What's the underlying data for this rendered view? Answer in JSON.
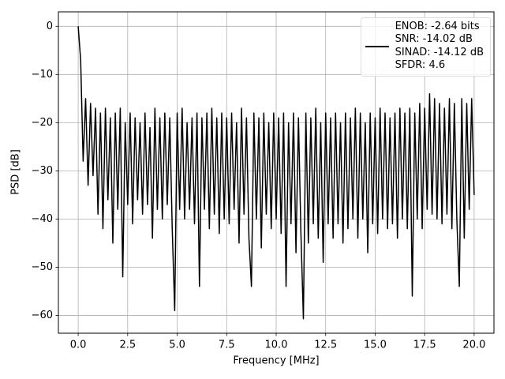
{
  "chart_data": {
    "type": "line",
    "xlabel": "Frequency [MHz]",
    "ylabel": "PSD [dB]",
    "x": [
      0,
      0.125,
      0.25,
      0.375,
      0.5,
      0.625,
      0.75,
      0.875,
      1,
      1.125,
      1.25,
      1.375,
      1.5,
      1.625,
      1.75,
      1.875,
      2,
      2.125,
      2.25,
      2.375,
      2.5,
      2.625,
      2.75,
      2.875,
      3,
      3.125,
      3.25,
      3.375,
      3.5,
      3.625,
      3.75,
      3.875,
      4,
      4.125,
      4.25,
      4.375,
      4.5,
      4.625,
      4.75,
      4.875,
      5,
      5.125,
      5.25,
      5.375,
      5.5,
      5.625,
      5.75,
      5.875,
      6,
      6.125,
      6.25,
      6.375,
      6.5,
      6.625,
      6.75,
      6.875,
      7,
      7.125,
      7.25,
      7.375,
      7.5,
      7.625,
      7.75,
      7.875,
      8,
      8.125,
      8.25,
      8.375,
      8.5,
      8.625,
      8.75,
      8.875,
      9,
      9.125,
      9.25,
      9.375,
      9.5,
      9.625,
      9.75,
      9.875,
      10,
      10.125,
      10.25,
      10.375,
      10.5,
      10.625,
      10.75,
      10.875,
      11,
      11.125,
      11.25,
      11.375,
      11.5,
      11.625,
      11.75,
      11.875,
      12,
      12.125,
      12.25,
      12.375,
      12.5,
      12.625,
      12.75,
      12.875,
      13,
      13.125,
      13.25,
      13.375,
      13.5,
      13.625,
      13.75,
      13.875,
      14,
      14.125,
      14.25,
      14.375,
      14.5,
      14.625,
      14.75,
      14.875,
      15,
      15.125,
      15.25,
      15.375,
      15.5,
      15.625,
      15.75,
      15.875,
      16,
      16.125,
      16.25,
      16.375,
      16.5,
      16.625,
      16.75,
      16.875,
      17,
      17.125,
      17.25,
      17.375,
      17.5,
      17.625,
      17.75,
      17.875,
      18,
      18.125,
      18.25,
      18.375,
      18.5,
      18.625,
      18.75,
      18.875,
      19,
      19.125,
      19.25,
      19.375,
      19.5,
      19.625,
      19.75,
      19.875,
      20
    ],
    "series": [
      {
        "name": "ENOB: -2.64 bits\nSNR: -14.02 dB\nSINAD: -14.12 dB\nSFDR: 4.6",
        "color": "#000000",
        "values": [
          0,
          -7,
          -28,
          -15,
          -33,
          -16,
          -31,
          -17,
          -39,
          -18,
          -42,
          -17,
          -36,
          -19,
          -45,
          -18,
          -38,
          -17,
          -52,
          -20,
          -37,
          -18,
          -41,
          -19,
          -36,
          -20,
          -39,
          -18,
          -37,
          -21,
          -44,
          -17,
          -38,
          -19,
          -40,
          -18,
          -37,
          -19,
          -42,
          -59,
          -18,
          -38,
          -17,
          -40,
          -20,
          -38,
          -19,
          -41,
          -18,
          -54,
          -19,
          -38,
          -18,
          -42,
          -17,
          -39,
          -19,
          -43,
          -18,
          -40,
          -19,
          -41,
          -18,
          -38,
          -20,
          -45,
          -17,
          -39,
          -19,
          -44,
          -54,
          -18,
          -40,
          -19,
          -46,
          -18,
          -39,
          -20,
          -42,
          -18,
          -40,
          -19,
          -43,
          -18,
          -54,
          -20,
          -41,
          -18,
          -47,
          -19,
          -43,
          -60.7,
          -18,
          -45,
          -19,
          -41,
          -17,
          -44,
          -20,
          -49,
          -18,
          -41,
          -19,
          -44,
          -18,
          -41,
          -20,
          -45,
          -18,
          -42,
          -19,
          -40,
          -17,
          -44,
          -18,
          -40,
          -20,
          -47,
          -18,
          -41,
          -19,
          -43,
          -17,
          -40,
          -18,
          -42,
          -19,
          -41,
          -18,
          -44,
          -17,
          -40,
          -18,
          -42,
          -17,
          -56,
          -18,
          -40,
          -16,
          -42,
          -17,
          -38,
          -14,
          -39,
          -15,
          -40,
          -16,
          -41,
          -17,
          -39,
          -15,
          -42,
          -16,
          -40,
          -54,
          -15,
          -44,
          -16,
          -38,
          -15,
          -35
        ]
      }
    ],
    "xlim": [
      -1,
      21
    ],
    "ylim": [
      -63.7,
      3.0
    ],
    "xticks": [
      {
        "value": 0,
        "label": "0.0"
      },
      2.5,
      {
        "value": 5,
        "label": "5.0"
      },
      7.5,
      {
        "value": 10,
        "label": "10.0"
      },
      12.5,
      {
        "value": 15,
        "label": "15.0"
      },
      17.5,
      {
        "value": 20,
        "label": "20.0"
      }
    ],
    "yticks": [
      {
        "value": 0,
        "label": "0"
      },
      {
        "value": -10,
        "label": "−10"
      },
      {
        "value": -20,
        "label": "−20"
      },
      {
        "value": -30,
        "label": "−30"
      },
      {
        "value": -40,
        "label": "−40"
      },
      {
        "value": -50,
        "label": "−50"
      },
      {
        "value": -60,
        "label": "−60"
      }
    ],
    "grid": true,
    "legend": "upper right"
  }
}
